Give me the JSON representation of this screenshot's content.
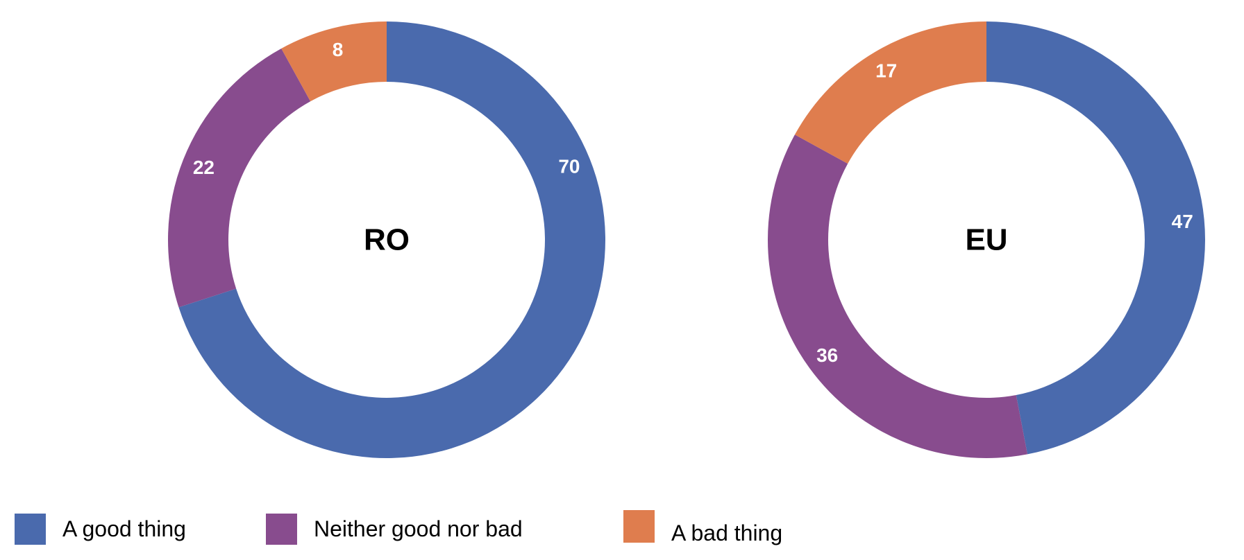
{
  "chart_data": {
    "type": "pie",
    "variant": "donut",
    "start": "top",
    "direction": "clockwise",
    "categories": [
      "A good thing",
      "Neither good nor bad",
      "A bad thing"
    ],
    "colors": [
      "#4a6aad",
      "#884c8e",
      "#df7d4e"
    ],
    "charts": [
      {
        "center_label": "RO",
        "values": [
          70,
          22,
          8
        ]
      },
      {
        "center_label": "EU",
        "values": [
          47,
          36,
          17
        ]
      }
    ],
    "legend_position": "bottom-left"
  }
}
